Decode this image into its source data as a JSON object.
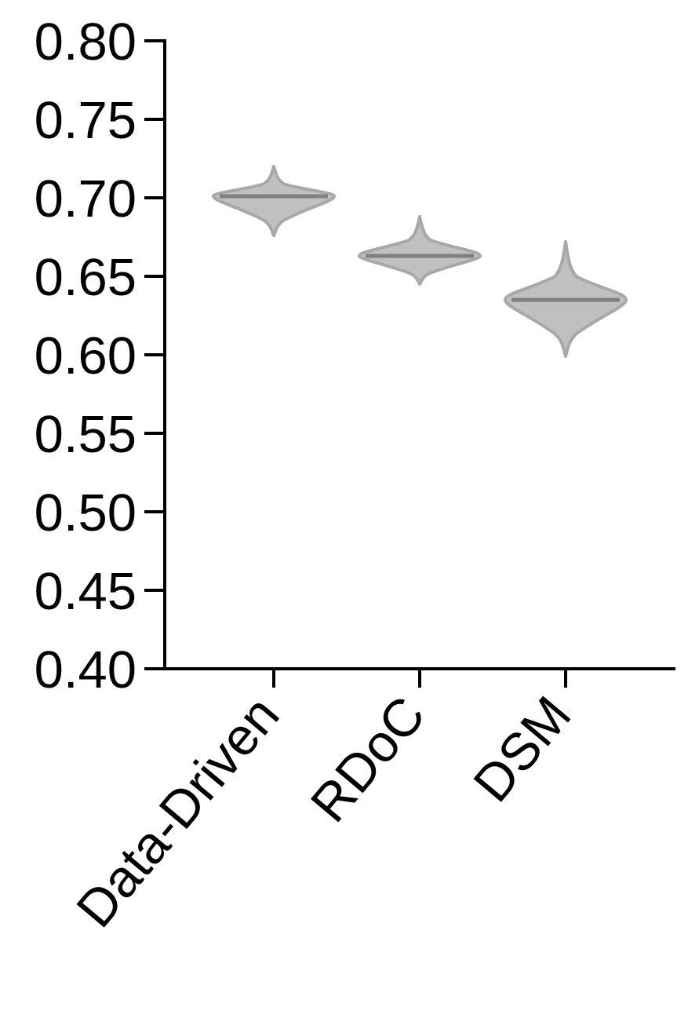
{
  "chart_data": {
    "type": "violin",
    "categories": [
      "Data-Driven",
      "RDoC",
      "DSM"
    ],
    "series": [
      {
        "category": "Data-Driven",
        "median": 0.701,
        "min": 0.676,
        "max": 0.72
      },
      {
        "category": "RDoC",
        "median": 0.663,
        "min": 0.645,
        "max": 0.688
      },
      {
        "category": "DSM",
        "median": 0.635,
        "min": 0.599,
        "max": 0.672
      }
    ],
    "yticks": [
      "0.40",
      "0.45",
      "0.50",
      "0.55",
      "0.60",
      "0.65",
      "0.70",
      "0.75",
      "0.80"
    ],
    "ylim": [
      0.4,
      0.8
    ],
    "title": "",
    "xlabel": "",
    "ylabel": "",
    "grid": false,
    "colors": {
      "fill": "#c0c0c0",
      "edge": "#a8a8a8",
      "median_line": "#808080",
      "axis": "#000000"
    }
  }
}
